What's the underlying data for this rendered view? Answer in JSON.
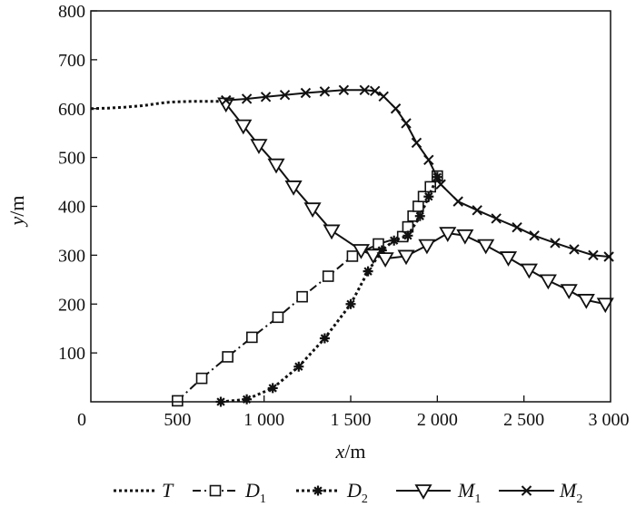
{
  "chart_data": {
    "type": "line",
    "xlabel_var": "x",
    "xlabel_unit": "/m",
    "ylabel_var": "y",
    "ylabel_unit": "/m",
    "xlim": [
      0,
      3000
    ],
    "ylim": [
      0,
      800
    ],
    "x_ticks": [
      0,
      500,
      1000,
      1500,
      2000,
      2500,
      3000
    ],
    "x_tick_labels": [
      "0",
      "500",
      "1 000",
      "1 500",
      "2 000",
      "2 500",
      "3 000"
    ],
    "y_ticks": [
      100,
      200,
      300,
      400,
      500,
      600,
      700,
      800
    ],
    "y_tick_labels": [
      "100",
      "200",
      "300",
      "400",
      "500",
      "600",
      "700",
      "800"
    ],
    "grid": false,
    "legend_placement": "bottom",
    "series": [
      {
        "name": "T",
        "name_main": "T",
        "name_sub": "",
        "line": "dotted",
        "marker": "none",
        "x": [
          0,
          100,
          200,
          300,
          400,
          450,
          500,
          600,
          700,
          780
        ],
        "y": [
          600,
          601,
          603,
          606,
          611,
          613,
          614,
          615,
          615,
          615
        ]
      },
      {
        "name": "D1",
        "name_main": "D",
        "name_sub": "1",
        "line": "dashdot",
        "marker": "square",
        "x": [
          500,
          640,
          790,
          930,
          1080,
          1220,
          1370,
          1510,
          1660,
          1800,
          1830,
          1860,
          1890,
          1920,
          1960,
          2000
        ],
        "y": [
          2,
          48,
          92,
          132,
          173,
          215,
          257,
          298,
          323,
          338,
          358,
          380,
          400,
          420,
          440,
          462
        ]
      },
      {
        "name": "D2",
        "name_main": "D",
        "name_sub": "2",
        "line": "dotted",
        "marker": "asterisk",
        "x": [
          750,
          900,
          1050,
          1200,
          1350,
          1500,
          1600,
          1680,
          1750,
          1830,
          1900,
          1950,
          2000
        ],
        "y": [
          0,
          5,
          28,
          72,
          130,
          200,
          267,
          310,
          330,
          340,
          380,
          420,
          460
        ]
      },
      {
        "name": "M1",
        "name_main": "M",
        "name_sub": "1",
        "line": "solid",
        "marker": "triangle-down",
        "x": [
          780,
          880,
          970,
          1070,
          1170,
          1280,
          1390,
          1560,
          1630,
          1700,
          1820,
          1940,
          2060,
          2160,
          2280,
          2410,
          2530,
          2640,
          2760,
          2860,
          2970
        ],
        "y": [
          610,
          565,
          525,
          485,
          440,
          395,
          350,
          310,
          300,
          293,
          298,
          320,
          345,
          340,
          320,
          295,
          270,
          248,
          228,
          208,
          200
        ]
      },
      {
        "name": "M2",
        "name_main": "M",
        "name_sub": "2",
        "line": "solid",
        "marker": "x",
        "x": [
          780,
          900,
          1010,
          1120,
          1240,
          1350,
          1460,
          1580,
          1640,
          1690,
          1760,
          1820,
          1880,
          1950,
          2020,
          2120,
          2230,
          2340,
          2460,
          2560,
          2680,
          2790,
          2900,
          2990
        ],
        "y": [
          617,
          620,
          624,
          628,
          632,
          635,
          638,
          638,
          636,
          625,
          600,
          570,
          530,
          495,
          445,
          410,
          392,
          375,
          357,
          340,
          325,
          312,
          300,
          297
        ]
      }
    ]
  }
}
